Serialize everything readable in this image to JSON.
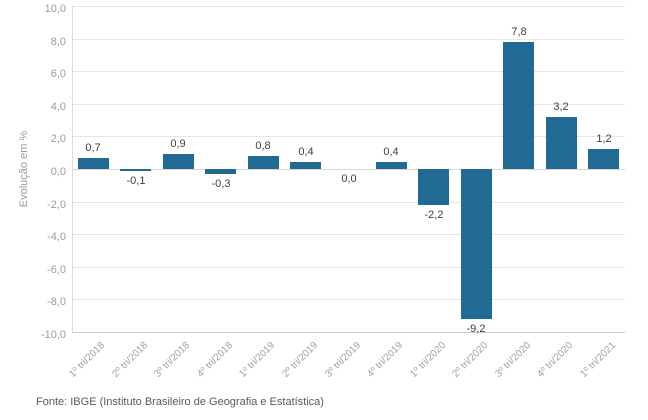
{
  "chart_data": {
    "type": "bar",
    "title": "",
    "xlabel": "",
    "ylabel": "Evolução em %",
    "categories": [
      "1º tri/2018",
      "2º tri/2018",
      "3º tri/2018",
      "4º tri/2018",
      "1º tri/2019",
      "2º tri/2019",
      "3º tri/2019",
      "4º tri/2019",
      "1º tri/2020",
      "2º tri/2020",
      "3º tri/2020",
      "4º tri/2020",
      "1º tri/2021"
    ],
    "values": [
      0.7,
      -0.1,
      0.9,
      -0.3,
      0.8,
      0.4,
      0.0,
      0.4,
      -2.2,
      -9.2,
      7.8,
      3.2,
      1.2
    ],
    "value_labels": [
      "0,7",
      "-0,1",
      "0,9",
      "-0,3",
      "0,8",
      "0,4",
      "0,0",
      "0,4",
      "-2,2",
      "-9,2",
      "7,8",
      "3,2",
      "1,2"
    ],
    "ylim": [
      -10,
      10
    ],
    "ytick_values": [
      10,
      8,
      6,
      4,
      2,
      0,
      -2,
      -4,
      -6,
      -8,
      -10
    ],
    "ytick_labels": [
      "10,0",
      "8,0",
      "6,0",
      "4,0",
      "2,0",
      "0,0",
      "-2,0",
      "-4,0",
      "-6,0",
      "-8,0",
      "-10,0"
    ],
    "grid": "horizontal-only",
    "legend": false
  },
  "footer": {
    "source": "Fonte: IBGE (Instituto Brasileiro de Geografia e Estatística)"
  },
  "colors": {
    "bar": "#216a93",
    "grid": "#e6e6e6",
    "axis_text": "#9b9b9b",
    "data_label": "#3f3f3f",
    "source_text": "#59595b",
    "background": "#ffffff"
  }
}
